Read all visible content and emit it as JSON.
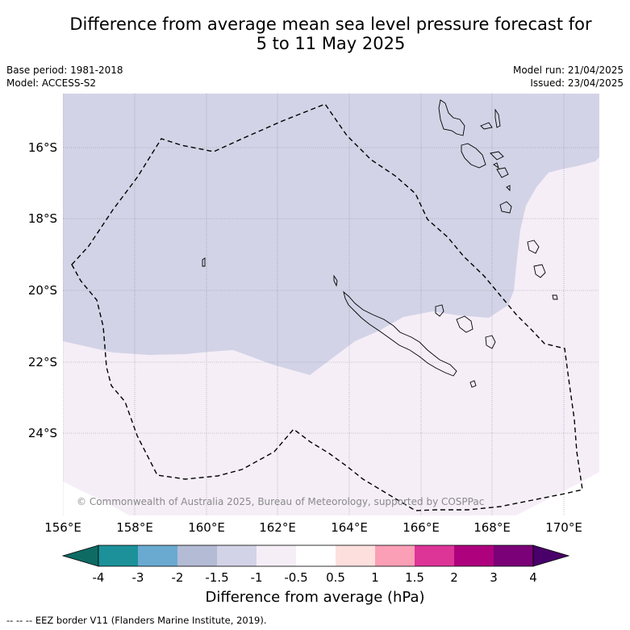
{
  "title_line1": "Difference from average mean sea level pressure forecast for",
  "title_line2": "5 to 11 May 2025",
  "base_period": "Base period: 1981-2018",
  "model": "Model: ACCESS-S2",
  "model_run": "Model run: 21/04/2025",
  "issued": "Issued: 23/04/2025",
  "copyright": "© Commonwealth of Australia 2025, Bureau of Meteorology, supported by COSPPac",
  "lat_labels": [
    "16°S",
    "18°S",
    "20°S",
    "22°S",
    "24°S"
  ],
  "lon_labels": [
    "156°E",
    "158°E",
    "160°E",
    "162°E",
    "164°E",
    "166°E",
    "168°E",
    "170°E"
  ],
  "colorbar": {
    "ticks": [
      "-4",
      "-3",
      "-2",
      "-1.5",
      "-1",
      "-0.5",
      "0.5",
      "1",
      "1.5",
      "2",
      "3",
      "4"
    ],
    "colors": [
      "#0d6b64",
      "#1c9199",
      "#6aaad1",
      "#b4bbd4",
      "#d3d3e7",
      "#f5eef7",
      "#ffffff",
      "#fde0dd",
      "#fa9fb5",
      "#dd3497",
      "#ae017e",
      "#7a0177",
      "#49006a"
    ],
    "label": "Difference from average (hPa)"
  },
  "map_colors": {
    "lower": "#d3d3e7",
    "near": "#f5eef7"
  },
  "footnote": "-- -- -- EEZ border V11 (Flanders Marine Institute, 2019)."
}
